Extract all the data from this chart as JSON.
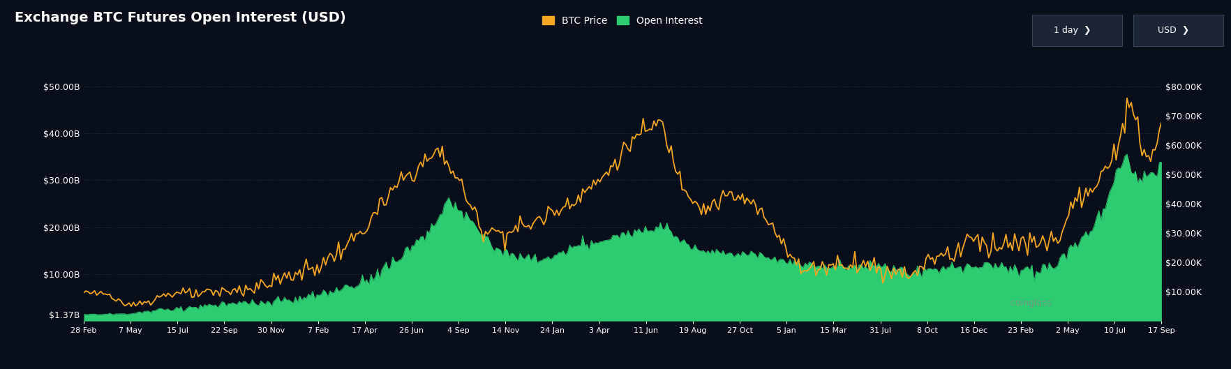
{
  "title": "Exchange BTC Futures Open Interest (USD)",
  "background_color": "#080e1a",
  "plot_bg_color": "#080e1a",
  "btc_price_color": "#f5a623",
  "open_interest_color": "#2ecc71",
  "grid_color": "#1a2535",
  "text_color": "#ffffff",
  "left_ytick_vals": [
    1.37,
    10,
    20,
    30,
    40,
    50
  ],
  "left_ytick_labels": [
    "$1.37B",
    "$10.00B",
    "$20.00B",
    "$30.00B",
    "$40.00B",
    "$50.00B"
  ],
  "right_ytick_vals": [
    10,
    20,
    30,
    40,
    50,
    60,
    70,
    80
  ],
  "right_ytick_labels": [
    "$10.00K",
    "$20.00K",
    "$30.00K",
    "$40.00K",
    "$50.00K",
    "$60.00K",
    "$70.00K",
    "$80.00K"
  ],
  "xtick_labels": [
    "28 Feb",
    "7 May",
    "15 Jul",
    "22 Sep",
    "30 Nov",
    "7 Feb",
    "17 Apr",
    "26 Jun",
    "4 Sep",
    "14 Nov",
    "24 Jan",
    "3 Apr",
    "11 Jun",
    "19 Aug",
    "27 Oct",
    "5 Jan",
    "15 Mar",
    "31 Jul",
    "8 Oct",
    "16 Dec",
    "23 Feb",
    "2 May",
    "10 Jul",
    "17 Sep"
  ],
  "left_ylim": [
    0,
    55
  ],
  "right_ylim": [
    0,
    88
  ],
  "n_points": 500
}
